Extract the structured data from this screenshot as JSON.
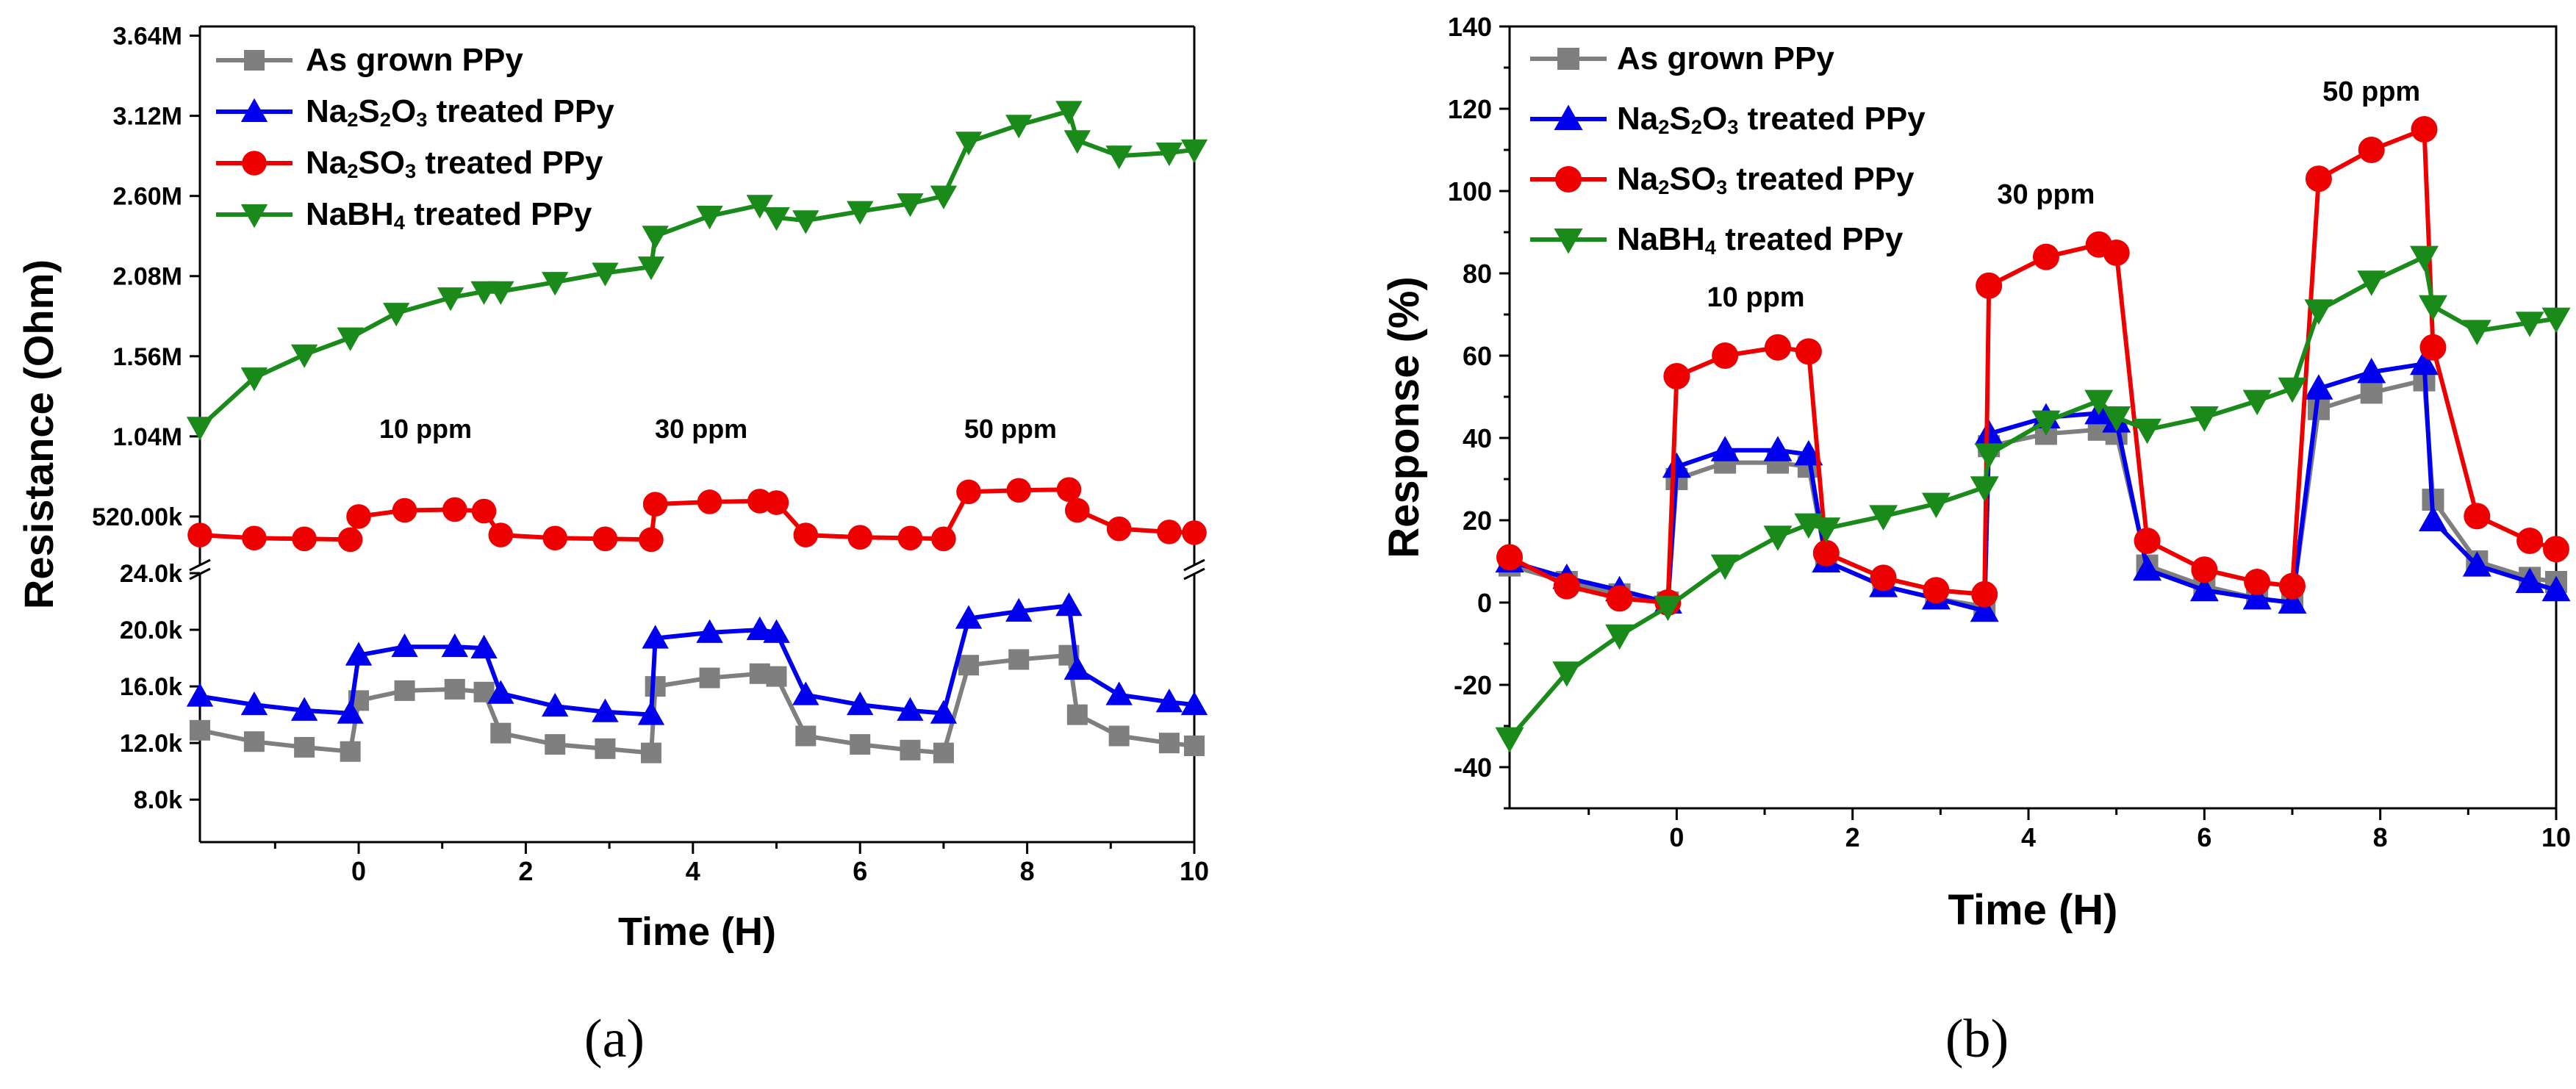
{
  "colors": {
    "As grown PPy": "#7f7f7f",
    "Na2S2O3 treated PPy": "#0000ee",
    "Na2SO3 treated PPy": "#ee0000",
    "NaBH4 treated PPy": "#1a8a1a"
  },
  "legend_rich": [
    {
      "parts": [
        [
          "As grown PPy",
          "n"
        ]
      ]
    },
    {
      "parts": [
        [
          "Na",
          "n"
        ],
        [
          "2",
          "s"
        ],
        [
          "S",
          "n"
        ],
        [
          "2",
          "s"
        ],
        [
          "O",
          "n"
        ],
        [
          "3",
          "s"
        ],
        [
          " treated PPy",
          "n"
        ]
      ]
    },
    {
      "parts": [
        [
          "Na",
          "n"
        ],
        [
          "2",
          "s"
        ],
        [
          "SO",
          "n"
        ],
        [
          "3",
          "s"
        ],
        [
          " treated PPy",
          "n"
        ]
      ]
    },
    {
      "parts": [
        [
          "NaBH",
          "n"
        ],
        [
          "4",
          "s"
        ],
        [
          " treated PPy",
          "n"
        ]
      ]
    }
  ],
  "chart_data": [
    {
      "panel_label": "(a)",
      "type": "line",
      "markers": "square/triangle/circle/down-triangle",
      "xlabel": "Time (H)",
      "ylabel": "Resistance (Ohm)",
      "xlim": [
        -1.9,
        10
      ],
      "x_ticks": [
        0,
        2,
        4,
        6,
        8,
        10
      ],
      "x_tick_labels": [
        "0",
        "2",
        "4",
        "6",
        "8",
        "10"
      ],
      "axis_break": "y-axis broken between 24.0k and 520.00k",
      "upper_segment": {
        "ylim": [
          200000,
          3700000
        ],
        "ticks": [
          520000,
          1040000,
          1560000,
          2080000,
          2600000,
          3120000,
          3640000
        ],
        "tick_labels": [
          "520.00k",
          "1.04M",
          "1.56M",
          "2.08M",
          "2.60M",
          "3.12M",
          "3.64M"
        ]
      },
      "lower_segment": {
        "ylim": [
          5000,
          24000
        ],
        "ticks": [
          8000,
          12000,
          16000,
          20000,
          24000
        ],
        "tick_labels": [
          "8.0k",
          "12.0k",
          "16.0k",
          "20.0k",
          "24.0k"
        ]
      },
      "annotations": [
        {
          "text": "10 ppm",
          "x": 0.8
        },
        {
          "text": "30 ppm",
          "x": 4.1
        },
        {
          "text": "50 ppm",
          "x": 7.8
        }
      ],
      "series": [
        {
          "name": "As grown PPy",
          "segment": "lower",
          "x": [
            -1.9,
            -1.25,
            -0.65,
            -0.1,
            0.0,
            0.55,
            1.15,
            1.5,
            1.7,
            2.35,
            2.95,
            3.5,
            3.55,
            4.2,
            4.8,
            5.0,
            5.35,
            6.0,
            6.6,
            7.0,
            7.3,
            7.9,
            8.5,
            8.6,
            9.1,
            9.7,
            10.0
          ],
          "y": [
            12900,
            12100,
            11700,
            11400,
            15000,
            15700,
            15800,
            15600,
            12700,
            11900,
            11600,
            11300,
            16000,
            16600,
            16900,
            16700,
            12500,
            11900,
            11500,
            11300,
            17500,
            17900,
            18200,
            14000,
            12500,
            12000,
            11800
          ]
        },
        {
          "name": "Na2S2O3 treated PPy",
          "segment": "lower",
          "x": [
            -1.9,
            -1.25,
            -0.65,
            -0.1,
            0.0,
            0.55,
            1.15,
            1.5,
            1.7,
            2.35,
            2.95,
            3.5,
            3.55,
            4.2,
            4.8,
            5.0,
            5.35,
            6.0,
            6.6,
            7.0,
            7.3,
            7.9,
            8.5,
            8.6,
            9.1,
            9.7,
            10.0
          ],
          "y": [
            15300,
            14700,
            14300,
            14100,
            18200,
            18800,
            18800,
            18700,
            15500,
            14600,
            14200,
            14000,
            19400,
            19800,
            20000,
            19800,
            15400,
            14700,
            14300,
            14100,
            20800,
            21300,
            21700,
            17200,
            15400,
            14900,
            14700
          ]
        },
        {
          "name": "Na2SO3 treated PPy",
          "segment": "upper",
          "x": [
            -1.9,
            -1.25,
            -0.65,
            -0.1,
            0.0,
            0.55,
            1.15,
            1.5,
            1.7,
            2.35,
            2.95,
            3.5,
            3.55,
            4.2,
            4.8,
            5.0,
            5.35,
            6.0,
            6.6,
            7.0,
            7.3,
            7.9,
            8.5,
            8.6,
            9.1,
            9.7,
            10.0
          ],
          "y": [
            400000,
            380000,
            375000,
            370000,
            520000,
            560000,
            565000,
            555000,
            400000,
            380000,
            375000,
            370000,
            600000,
            615000,
            620000,
            610000,
            400000,
            385000,
            380000,
            375000,
            680000,
            690000,
            695000,
            560000,
            440000,
            420000,
            415000
          ]
        },
        {
          "name": "NaBH4 treated PPy",
          "segment": "upper",
          "x": [
            -1.9,
            -1.25,
            -0.65,
            -0.1,
            0.45,
            1.1,
            1.5,
            1.7,
            2.35,
            2.95,
            3.5,
            3.55,
            4.2,
            4.8,
            5.0,
            5.35,
            6.0,
            6.6,
            7.0,
            7.3,
            7.9,
            8.5,
            8.6,
            9.1,
            9.7,
            10.0
          ],
          "y": [
            1100000,
            1420000,
            1570000,
            1680000,
            1840000,
            1940000,
            1980000,
            1980000,
            2040000,
            2100000,
            2140000,
            2340000,
            2470000,
            2540000,
            2460000,
            2440000,
            2500000,
            2550000,
            2600000,
            2950000,
            3060000,
            3150000,
            2960000,
            2860000,
            2880000,
            2900000
          ]
        }
      ]
    },
    {
      "panel_label": "(b)",
      "type": "line",
      "markers": "square/triangle/circle/down-triangle",
      "xlabel": "Time (H)",
      "ylabel": "Response (%)",
      "xlim": [
        -1.9,
        10
      ],
      "ylim": [
        -50,
        140
      ],
      "x_ticks": [
        0,
        2,
        4,
        6,
        8,
        10
      ],
      "x_tick_labels": [
        "0",
        "2",
        "4",
        "6",
        "8",
        "10"
      ],
      "y_ticks": [
        -40,
        -20,
        0,
        20,
        40,
        60,
        80,
        100,
        120,
        140
      ],
      "y_tick_labels": [
        "-40",
        "-20",
        "0",
        "20",
        "40",
        "60",
        "80",
        "100",
        "120",
        "140"
      ],
      "annotations": [
        {
          "text": "10 ppm",
          "x": 0.9,
          "y": 72
        },
        {
          "text": "30 ppm",
          "x": 4.2,
          "y": 97
        },
        {
          "text": "50 ppm",
          "x": 7.9,
          "y": 122
        }
      ],
      "series": [
        {
          "name": "As grown PPy",
          "x": [
            -1.9,
            -1.25,
            -0.65,
            -0.1,
            0.0,
            0.55,
            1.15,
            1.5,
            1.7,
            2.35,
            2.95,
            3.5,
            3.55,
            4.2,
            4.8,
            5.0,
            5.35,
            6.0,
            6.6,
            7.0,
            7.3,
            7.9,
            8.5,
            8.6,
            9.1,
            9.7,
            10.0
          ],
          "y": [
            9,
            5,
            2,
            0,
            30,
            34,
            34,
            33,
            10,
            4,
            1,
            -1,
            38,
            41,
            42,
            41,
            9,
            4,
            1,
            0,
            47,
            51,
            54,
            25,
            10,
            6,
            5
          ]
        },
        {
          "name": "Na2S2O3 treated PPy",
          "x": [
            -1.9,
            -1.25,
            -0.65,
            -0.1,
            0.0,
            0.55,
            1.15,
            1.5,
            1.7,
            2.35,
            2.95,
            3.5,
            3.55,
            4.2,
            4.8,
            5.0,
            5.35,
            6.0,
            6.6,
            7.0,
            7.3,
            7.9,
            8.5,
            8.6,
            9.1,
            9.7,
            10.0
          ],
          "y": [
            10,
            6,
            3,
            0,
            33,
            37,
            37,
            36,
            10,
            4,
            1,
            -2,
            41,
            45,
            46,
            44,
            8,
            3,
            1,
            0,
            52,
            56,
            58,
            20,
            9,
            5,
            3
          ]
        },
        {
          "name": "Na2SO3 treated PPy",
          "x": [
            -1.9,
            -1.25,
            -0.65,
            -0.1,
            0.0,
            0.55,
            1.15,
            1.5,
            1.7,
            2.35,
            2.95,
            3.5,
            3.55,
            4.2,
            4.8,
            5.0,
            5.35,
            6.0,
            6.6,
            7.0,
            7.3,
            7.9,
            8.5,
            8.6,
            9.1,
            9.7,
            10.0
          ],
          "y": [
            11,
            4,
            1,
            0,
            55,
            60,
            62,
            61,
            12,
            6,
            3,
            2,
            77,
            84,
            87,
            85,
            15,
            8,
            5,
            4,
            103,
            110,
            115,
            62,
            21,
            15,
            13
          ]
        },
        {
          "name": "NaBH4 treated PPy",
          "x": [
            -1.9,
            -1.25,
            -0.65,
            -0.1,
            0.55,
            1.15,
            1.5,
            1.7,
            2.35,
            2.95,
            3.5,
            3.55,
            4.2,
            4.8,
            5.0,
            5.35,
            6.0,
            6.6,
            7.0,
            7.3,
            7.9,
            8.5,
            8.6,
            9.1,
            9.7,
            10.0
          ],
          "y": [
            -33,
            -17,
            -8,
            -1,
            9,
            16,
            19,
            18,
            21,
            24,
            28,
            36,
            44,
            49,
            45,
            42,
            45,
            49,
            52,
            71,
            78,
            84,
            72,
            66,
            68,
            69
          ]
        }
      ]
    }
  ]
}
